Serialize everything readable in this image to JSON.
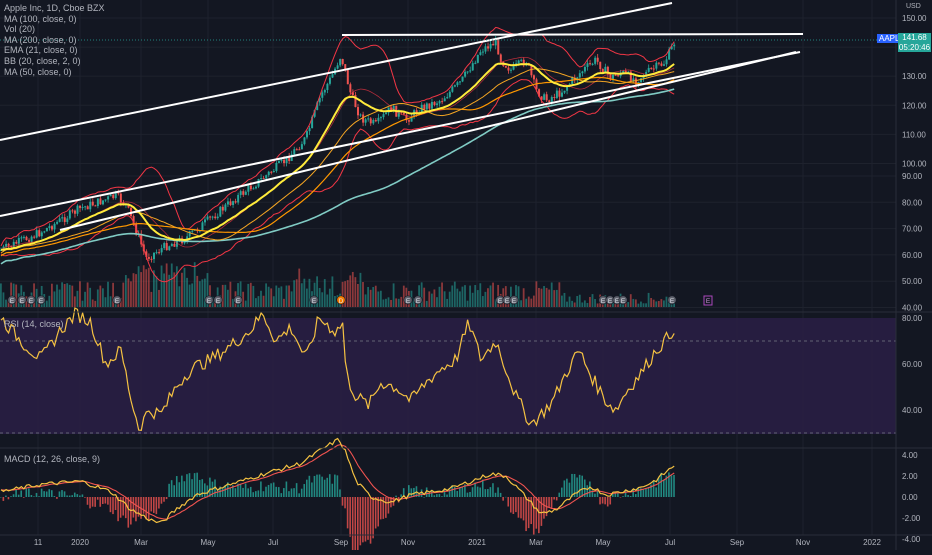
{
  "chart_data": [
    {
      "type": "candlestick",
      "legend": [
        {
          "label": "Apple Inc, 1D, Cboe BZX"
        },
        {
          "label": "MA (100, close, 0)"
        },
        {
          "label": "Vol (20)"
        },
        {
          "label": "MA (200, close, 0)"
        },
        {
          "label": "EMA (21, close, 0)"
        },
        {
          "label": "BB (20, close, 2, 0)"
        },
        {
          "label": "MA (50, close, 0)"
        }
      ],
      "currency": "USD",
      "ticker_tag": "AAPL",
      "last_price": "141.68",
      "countdown": "05:20:46",
      "y_ticks": [
        "150.00",
        "140.00",
        "130.00",
        "120.00",
        "110.00",
        "100.00",
        "90.00",
        "80.00",
        "70.00",
        "60.00",
        "50.00",
        "40.00"
      ],
      "x_ticks": [
        "11",
        "2020",
        "Mar",
        "May",
        "Jul",
        "Sep",
        "Nov",
        "2021",
        "Mar",
        "May",
        "Jul",
        "Sep",
        "Nov",
        "2022"
      ],
      "event_markers": [
        "E",
        "E",
        "E",
        "E",
        "E",
        "E",
        "E",
        "E",
        "D",
        "E",
        "E",
        "E",
        "E",
        "E",
        "E",
        "E",
        "E",
        "E",
        "E",
        "E"
      ],
      "colors": {
        "up": "#26a69a",
        "down": "#ef5350",
        "ma100": "#80cbc4",
        "ma200": "#f5a623",
        "ema21": "#ffeb3b",
        "bb": "#f23645",
        "ma50": "#ff9800",
        "trendline": "#ffffff"
      }
    },
    {
      "type": "line",
      "label": "RSI (14, close)",
      "y_ticks": [
        "80.00",
        "60.00",
        "40.00"
      ],
      "bands": [
        70,
        30
      ],
      "color": "#f5c242"
    },
    {
      "type": "bar",
      "label": "MACD (12, 26, close, 9)",
      "y_ticks": [
        "4.00",
        "2.00",
        "0.00",
        "-2.00",
        "-4.00"
      ],
      "colors": {
        "macd": "#f5c242",
        "signal": "#ef5350"
      }
    }
  ]
}
